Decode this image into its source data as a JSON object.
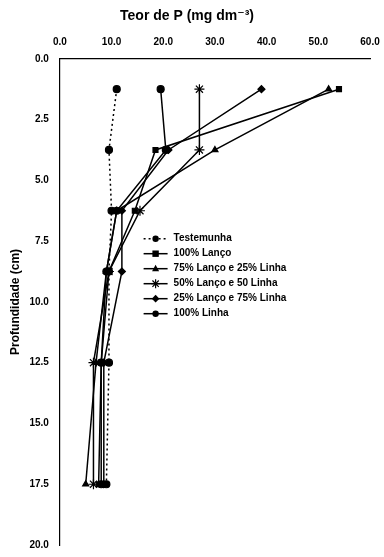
{
  "chart_data": {
    "type": "line",
    "title": "Teor de P (mg dm⁻³)",
    "y_label": "Profundidade (cm)",
    "xlim": [
      0,
      60
    ],
    "xticks": [
      {
        "value": 0,
        "label": "0.0"
      },
      {
        "value": 10,
        "label": "10.0"
      },
      {
        "value": 20,
        "label": "20.0"
      },
      {
        "value": 30,
        "label": "30.0"
      },
      {
        "value": 40,
        "label": "40.0"
      },
      {
        "value": 50,
        "label": "50.0"
      },
      {
        "value": 60,
        "label": "60.0"
      }
    ],
    "ylim": [
      20,
      0
    ],
    "yticks": [
      {
        "value": 0,
        "label": "0.0"
      },
      {
        "value": 2.5,
        "label": "2.5"
      },
      {
        "value": 5,
        "label": "5.0"
      },
      {
        "value": 7.5,
        "label": "7.5"
      },
      {
        "value": 10,
        "label": "10.0"
      },
      {
        "value": 12.5,
        "label": "12.5"
      },
      {
        "value": 15,
        "label": "15.0"
      },
      {
        "value": 17.5,
        "label": "17.5"
      },
      {
        "value": 20,
        "label": "20.0"
      }
    ],
    "grid": false,
    "legend": "right",
    "series": [
      {
        "name": "Testemunha",
        "color": "#000000",
        "marker": "circle",
        "line_style": "dotted",
        "x": [
          11,
          9.5,
          10,
          9.5,
          9.5,
          9
        ],
        "values": [
          1.25,
          3.75,
          6.25,
          8.75,
          12.5,
          17.5
        ]
      },
      {
        "name": "100% Lanço",
        "color": "#000000",
        "marker": "square",
        "line_style": "solid",
        "x": [
          54,
          18.5,
          14.5,
          9.5,
          8,
          7.5
        ],
        "values": [
          1.25,
          3.75,
          6.25,
          8.75,
          12.5,
          17.5
        ]
      },
      {
        "name": "75% Lanço e 25% Linha",
        "color": "#000000",
        "marker": "triangle",
        "line_style": "solid",
        "x": [
          52,
          30,
          11,
          9,
          7,
          5
        ],
        "values": [
          1.25,
          3.75,
          6.25,
          8.75,
          12.5,
          17.5
        ]
      },
      {
        "name": "50% Lanço e 50 Linha",
        "color": "#000000",
        "marker": "star",
        "line_style": "solid",
        "x": [
          27,
          27,
          15.5,
          9.5,
          6.5,
          6.5
        ],
        "values": [
          1.25,
          3.75,
          6.25,
          8.75,
          12.5,
          17.5
        ]
      },
      {
        "name": "25% Lanço e 75% Linha",
        "color": "#000000",
        "marker": "diamond",
        "line_style": "solid",
        "x": [
          39,
          21,
          12,
          12,
          8.5,
          8.5
        ],
        "values": [
          1.25,
          3.75,
          6.25,
          8.75,
          12.5,
          17.5
        ]
      },
      {
        "name": "100% Linha",
        "color": "#000000",
        "marker": "circle",
        "line_style": "solid",
        "x": [
          19.5,
          20.5,
          11,
          9,
          8,
          8
        ],
        "values": [
          1.25,
          3.75,
          6.25,
          8.75,
          12.5,
          17.5
        ]
      }
    ]
  }
}
